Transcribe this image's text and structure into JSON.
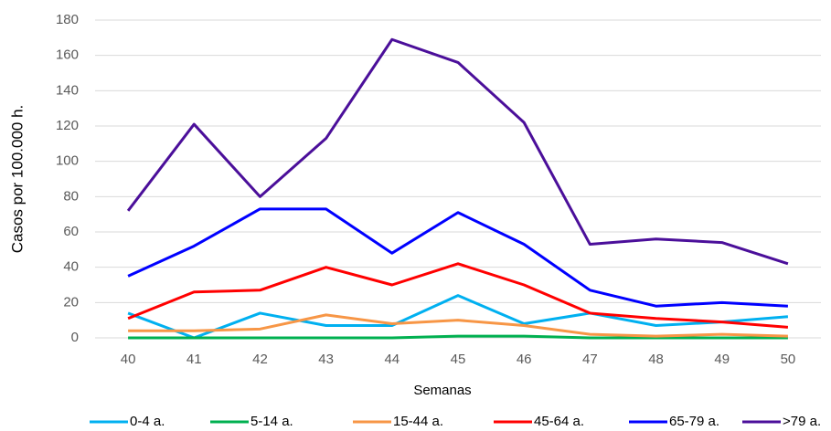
{
  "chart_data": {
    "type": "line",
    "x_label": "Semanas",
    "y_label": "Casos por 100.000 h.",
    "categories": [
      "40",
      "41",
      "42",
      "43",
      "44",
      "45",
      "46",
      "47",
      "48",
      "49",
      "50"
    ],
    "series": [
      {
        "name": "0-4 a.",
        "color": "#00b0f0",
        "values": [
          14,
          0,
          14,
          7,
          7,
          24,
          8,
          14,
          7,
          9,
          12
        ]
      },
      {
        "name": "5-14 a.",
        "color": "#00b050",
        "values": [
          0,
          0,
          0,
          0,
          0,
          1,
          1,
          0,
          0,
          0,
          0
        ]
      },
      {
        "name": "15-44 a.",
        "color": "#f79646",
        "values": [
          4,
          4,
          5,
          13,
          8,
          10,
          7,
          2,
          1,
          2,
          1
        ]
      },
      {
        "name": "45-64 a.",
        "color": "#ff0000",
        "values": [
          11,
          26,
          27,
          40,
          30,
          42,
          30,
          14,
          11,
          9,
          6
        ]
      },
      {
        "name": "65-79 a.",
        "color": "#0000ff",
        "values": [
          35,
          52,
          73,
          73,
          48,
          71,
          53,
          27,
          18,
          20,
          18
        ]
      },
      {
        "name": ">79 a.",
        "color": "#4b0f9a",
        "values": [
          72,
          121,
          80,
          113,
          169,
          156,
          122,
          53,
          56,
          54,
          42
        ]
      }
    ],
    "ylim": [
      0,
      180
    ],
    "yticks": [
      0,
      20,
      40,
      60,
      80,
      100,
      120,
      140,
      160,
      180
    ],
    "grid": true
  }
}
